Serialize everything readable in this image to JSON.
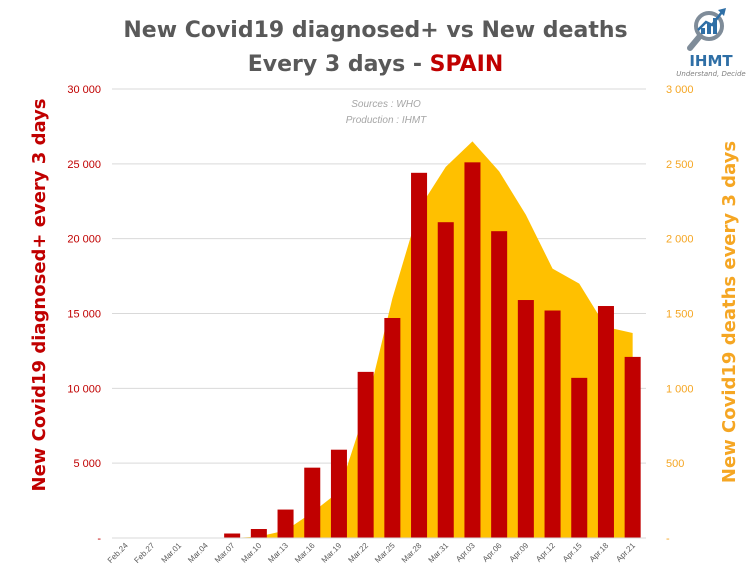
{
  "title_line1": "New Covid19 diagnosed+ vs New deaths",
  "title_line2_prefix": "Every 3 days - ",
  "title_country": "SPAIN",
  "logo": {
    "icon": "magnifier-chart-icon",
    "name": "IHMT",
    "tagline": "Understand, Decide"
  },
  "colors": {
    "bars": "#c00000",
    "area": "#ffc000",
    "left_axis": "#c00000",
    "right_axis": "#f5a623",
    "title": "#595959"
  },
  "chart_data": {
    "type": "bar",
    "categories": [
      "Feb.24",
      "Feb.27",
      "Mar.01",
      "Mar.04",
      "Mar.07",
      "Mar.10",
      "Mar.13",
      "Mar.16",
      "Mar.19",
      "Mar.22",
      "Mar.25",
      "Mar.28",
      "Mar.31",
      "Apr.03",
      "Apr.06",
      "Apr.09",
      "Apr.12",
      "Apr.15",
      "Apr.18",
      "Apr.21"
    ],
    "series": [
      {
        "name": "New Covid19 diagnosed+ every 3 days",
        "type": "bar",
        "axis": "left",
        "values": [
          0,
          0,
          0,
          0,
          300,
          600,
          1900,
          4700,
          5900,
          11100,
          14700,
          24400,
          21100,
          25100,
          20500,
          15900,
          15200,
          10700,
          15500,
          12100
        ]
      },
      {
        "name": "New Covid19 deaths every 3 days",
        "type": "area",
        "axis": "right",
        "values": [
          0,
          0,
          0,
          0,
          0,
          10,
          50,
          170,
          310,
          860,
          1600,
          2200,
          2480,
          2650,
          2450,
          2160,
          1800,
          1700,
          1410,
          1370
        ]
      }
    ],
    "y_left": {
      "label": "New Covid19 diagnosed+ every 3 days",
      "range": [
        0,
        30000
      ],
      "ticks": [
        "30 000",
        "25 000",
        "20 000",
        "15 000",
        "10 000",
        "5 000",
        "-"
      ],
      "tick_values": [
        30000,
        25000,
        20000,
        15000,
        10000,
        5000,
        0
      ]
    },
    "y_right": {
      "label": "New Covid19 deaths every 3 days",
      "range": [
        0,
        3000
      ],
      "ticks": [
        "3 000",
        "2 500",
        "2 000",
        "1 500",
        "1 000",
        "500",
        "-"
      ],
      "tick_values": [
        3000,
        2500,
        2000,
        1500,
        1000,
        500,
        0
      ]
    },
    "annotations": [
      "Sources : WHO",
      "Production : IHMT"
    ],
    "grid": true,
    "legend": "none"
  }
}
